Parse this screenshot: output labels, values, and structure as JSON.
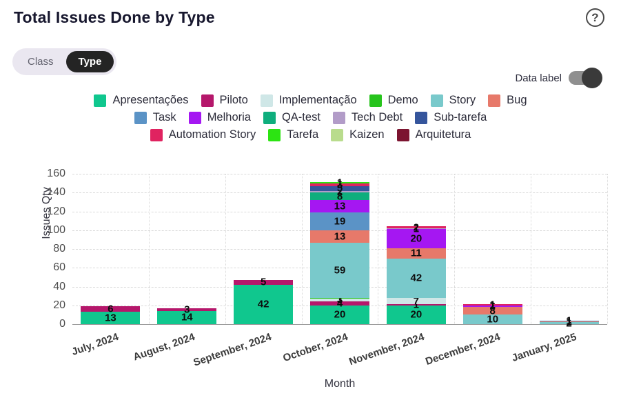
{
  "header": {
    "title": "Total Issues Done by Type",
    "help_icon": "?"
  },
  "view_toggle": {
    "options": [
      "Class",
      "Type"
    ],
    "selected": "Type"
  },
  "data_label_toggle": {
    "label": "Data label",
    "state": "on"
  },
  "chart_data": {
    "type": "bar",
    "stacked": true,
    "title": "Total Issues Done by Type",
    "xlabel": "Month",
    "ylabel": "Issues Qty",
    "ylim": [
      0,
      160
    ],
    "ytick_step": 20,
    "grid": true,
    "data_labels": true,
    "legend_position": "top-center",
    "categories": [
      "July, 2024",
      "August, 2024",
      "September, 2024",
      "October, 2024",
      "November, 2024",
      "December, 2024",
      "January, 2025"
    ],
    "series": [
      {
        "name": "Apresentações",
        "color": "#10c78e",
        "values": [
          13,
          14,
          42,
          20,
          20,
          0,
          0
        ]
      },
      {
        "name": "Piloto",
        "color": "#b5176b",
        "values": [
          6,
          3,
          5,
          4,
          1,
          0,
          0
        ]
      },
      {
        "name": "Implementação",
        "color": "#cfe7e7",
        "values": [
          0,
          0,
          0,
          3,
          7,
          0,
          0
        ]
      },
      {
        "name": "Demo",
        "color": "#27c41d",
        "values": [
          0,
          0,
          0,
          1,
          0,
          0,
          0
        ]
      },
      {
        "name": "Story",
        "color": "#79c9cb",
        "values": [
          0,
          0,
          0,
          59,
          42,
          10,
          2
        ]
      },
      {
        "name": "Bug",
        "color": "#e7796a",
        "values": [
          0,
          0,
          0,
          13,
          11,
          8,
          1
        ]
      },
      {
        "name": "Task",
        "color": "#5b93c6",
        "values": [
          0,
          0,
          0,
          19,
          0,
          0,
          1
        ]
      },
      {
        "name": "Melhoria",
        "color": "#a517f2",
        "values": [
          0,
          0,
          0,
          13,
          20,
          2,
          0
        ]
      },
      {
        "name": "QA-test",
        "color": "#0fae7d",
        "values": [
          0,
          0,
          0,
          8,
          0,
          0,
          0
        ]
      },
      {
        "name": "Tech Debt",
        "color": "#b29cc8",
        "values": [
          0,
          0,
          0,
          2,
          1,
          0,
          0
        ]
      },
      {
        "name": "Sub-tarefa",
        "color": "#35559c",
        "values": [
          0,
          0,
          0,
          5,
          0,
          0,
          0
        ]
      },
      {
        "name": "Automation Story",
        "color": "#e02360",
        "values": [
          0,
          0,
          0,
          3,
          2,
          1,
          0
        ]
      },
      {
        "name": "Tarefa",
        "color": "#2ce412",
        "values": [
          0,
          0,
          0,
          1,
          0,
          0,
          0
        ]
      },
      {
        "name": "Kaizen",
        "color": "#b9dc8d",
        "values": [
          0,
          0,
          0,
          0,
          0,
          0,
          0
        ]
      },
      {
        "name": "Arquitetura",
        "color": "#7c1430",
        "values": [
          0,
          0,
          0,
          0,
          0,
          0,
          0
        ]
      }
    ],
    "legend_rows": [
      [
        "Apresentações",
        "Piloto",
        "Implementação",
        "Demo",
        "Story",
        "Bug"
      ],
      [
        "Task",
        "Melhoria",
        "QA-test",
        "Tech Debt",
        "Sub-tarefa"
      ],
      [
        "Automation Story",
        "Tarefa",
        "Kaizen",
        "Arquitetura"
      ]
    ],
    "yticks": [
      0,
      20,
      40,
      60,
      80,
      100,
      120,
      140,
      160
    ]
  }
}
